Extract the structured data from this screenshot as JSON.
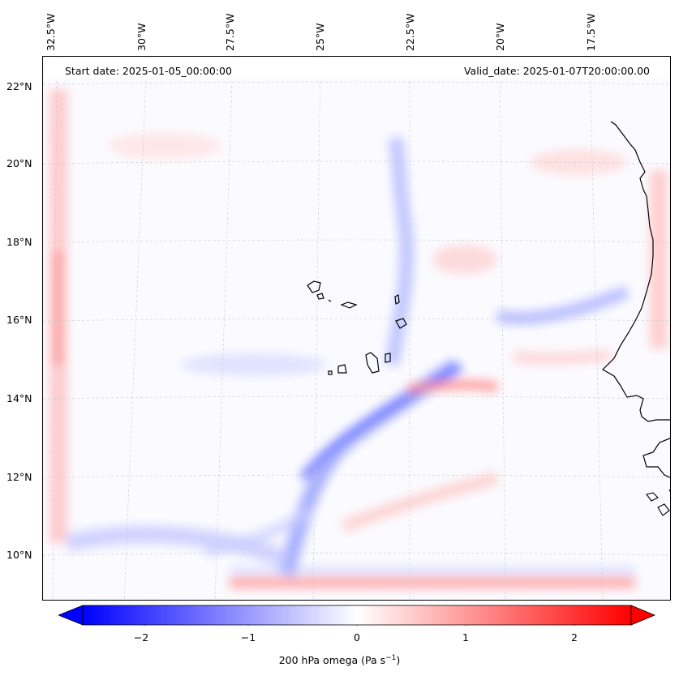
{
  "map": {
    "start_date": "Start date: 2025-01-05_00:00:00",
    "valid_date": "Valid_date: 2025-01-07T20:00:00.00",
    "lon_labels": [
      "32.5°W",
      "30°W",
      "27.5°W",
      "25°W",
      "22.5°W",
      "20°W",
      "17.5°W"
    ],
    "lat_labels": [
      "22°N",
      "20°N",
      "18°N",
      "16°N",
      "14°N",
      "12°N",
      "10°N"
    ],
    "features": [
      "Cape Verde Islands",
      "West African coastline (Mauritania, Senegal, Guinea-Bissau)"
    ],
    "field": "200 hPa vertical velocity (omega)"
  },
  "colorbar": {
    "ticks": [
      "−2",
      "−1",
      "0",
      "1",
      "2"
    ],
    "tick_values": [
      -2,
      -1,
      0,
      1,
      2
    ],
    "range": [
      -2.6,
      2.6
    ],
    "label": "200 hPa omega (Pa s",
    "label_exponent": "−1",
    "label_close": ")",
    "colors": {
      "negative": "#0000ff",
      "zero": "#ffffff",
      "positive": "#ff0000"
    },
    "extend": "both"
  }
}
